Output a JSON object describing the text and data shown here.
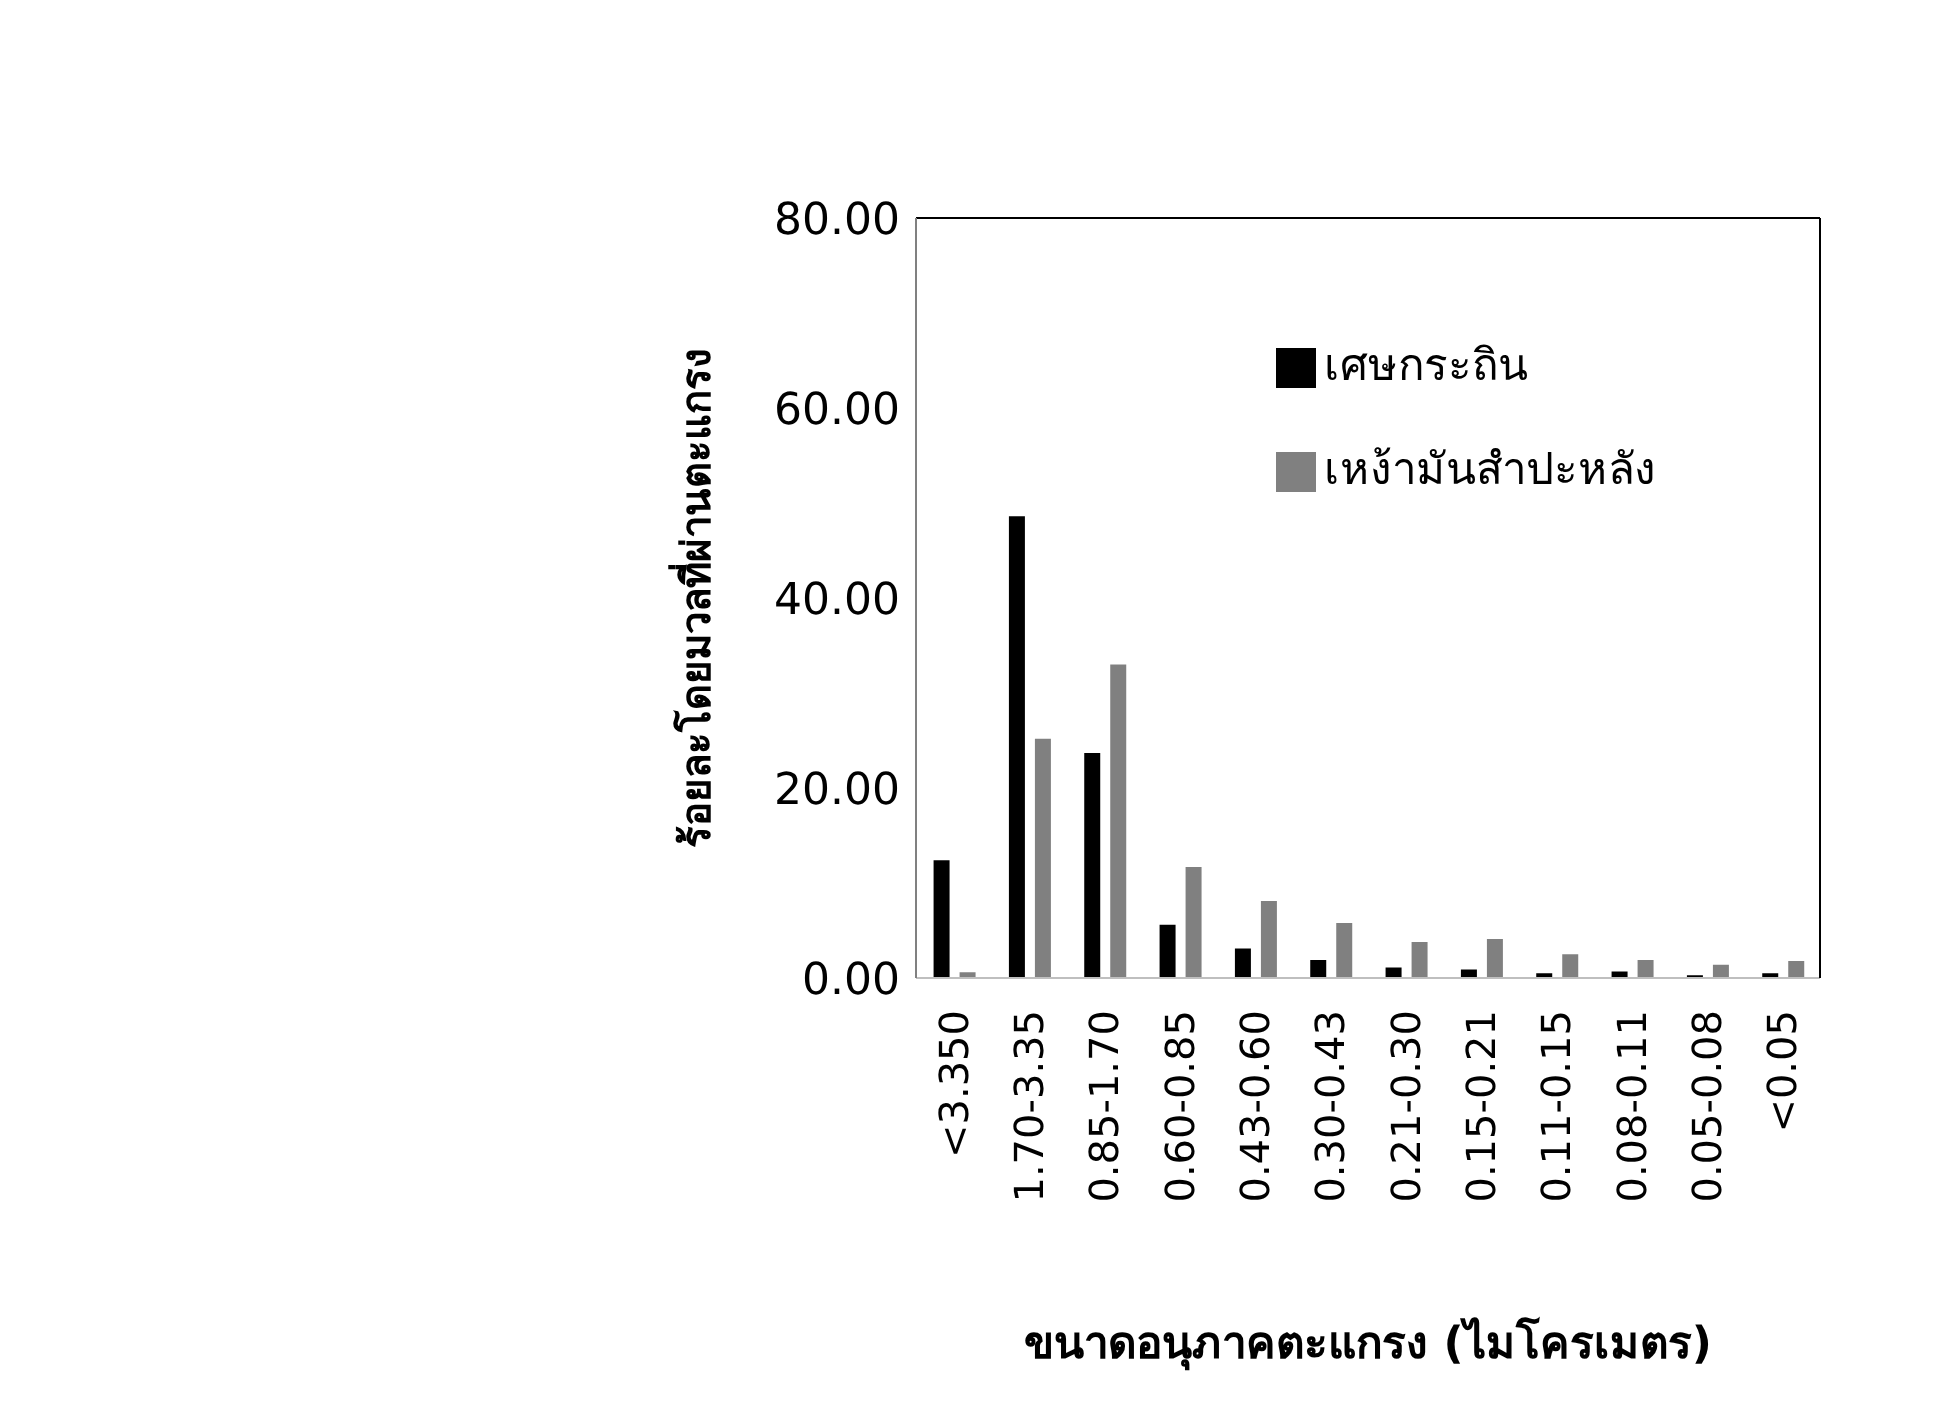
{
  "chart_data": {
    "type": "bar",
    "xlabel": "ขนาดอนุภาคตะแกรง (ไมโครเมตร)",
    "ylabel": "ร้อยละโดยมวลที่ผ่านตะแกรง",
    "categories": [
      "<3.350",
      "1.70-3.35",
      "0.85-1.70",
      "0.60-0.85",
      "0.43-0.60",
      "0.30-0.43",
      "0.21-0.30",
      "0.15-0.21",
      "0.11-0.15",
      "0.08-0.11",
      "0.05-0.08",
      "<0.05"
    ],
    "series": [
      {
        "name": "เศษกระถิน",
        "color": "#000000",
        "values": [
          12.5,
          48.7,
          23.8,
          5.7,
          3.2,
          2.0,
          1.2,
          1.0,
          0.6,
          0.8,
          0.4,
          0.6
        ]
      },
      {
        "name": "เหง้ามันสำปะหลัง",
        "color": "#808080",
        "values": [
          0.7,
          25.3,
          33.1,
          11.8,
          8.2,
          5.9,
          3.9,
          4.2,
          2.6,
          2.0,
          1.5,
          1.9
        ]
      }
    ],
    "ylim": [
      0,
      80
    ],
    "yticks": [
      {
        "value": 0,
        "label": "0.00"
      },
      {
        "value": 20,
        "label": "20.00"
      },
      {
        "value": 40,
        "label": "40.00"
      },
      {
        "value": 60,
        "label": "60.00"
      },
      {
        "value": 80,
        "label": "80.00"
      }
    ],
    "grid": false,
    "legend": "right"
  }
}
